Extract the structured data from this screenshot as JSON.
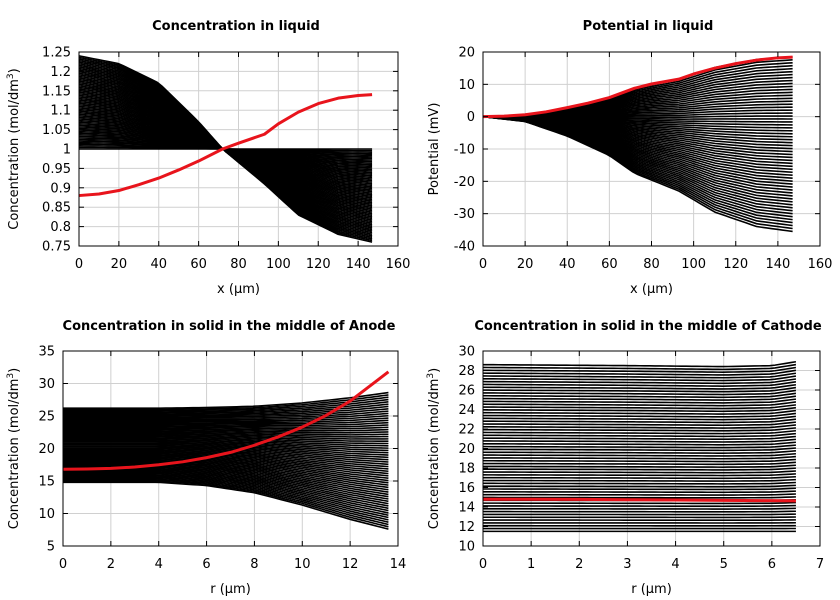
{
  "chart_data": [
    {
      "type": "line",
      "title": "Concentration in liquid",
      "xlabel": "x (μm)",
      "ylabel_main": "Concentration (mol/dm",
      "ylabel_sup": "3",
      "ylabel_tail": ")",
      "xlim": [
        0,
        160
      ],
      "ylim": [
        0.75,
        1.25
      ],
      "xticks": [
        0,
        20,
        40,
        60,
        80,
        100,
        120,
        140,
        160
      ],
      "yticks": [
        0.75,
        0.8,
        0.85,
        0.9,
        0.95,
        1,
        1.05,
        1.1,
        1.15,
        1.2,
        1.25
      ],
      "ytick_labels": [
        "0.75",
        "0.8",
        "0.85",
        "0.9",
        "0.95",
        "1",
        "1.05",
        "1.1",
        "1.15",
        "1.2",
        "1.25"
      ],
      "grid": true,
      "highlight_color": "#e8141c",
      "family_color": "#000000",
      "family": {
        "count": 60,
        "x_end": 147,
        "start": [
          [
            0,
            1.0
          ],
          [
            50,
            1.0
          ],
          [
            72,
            1.0
          ],
          [
            93,
            1.0
          ],
          [
            147,
            1.0
          ]
        ],
        "end": [
          [
            0,
            1.24
          ],
          [
            20,
            1.22
          ],
          [
            40,
            1.17
          ],
          [
            60,
            1.07
          ],
          [
            72,
            1.0
          ],
          [
            93,
            0.91
          ],
          [
            110,
            0.83
          ],
          [
            130,
            0.78
          ],
          [
            147,
            0.76
          ]
        ]
      },
      "series": [
        {
          "x": [
            0,
            10,
            20,
            30,
            40,
            50,
            60,
            72,
            80,
            93,
            100,
            110,
            120,
            130,
            140,
            147
          ],
          "values": [
            0.88,
            0.884,
            0.893,
            0.908,
            0.925,
            0.946,
            0.969,
            1.0,
            1.015,
            1.038,
            1.065,
            1.095,
            1.117,
            1.131,
            1.138,
            1.14
          ]
        }
      ]
    },
    {
      "type": "line",
      "title": "Potential in liquid",
      "xlabel": "x (μm)",
      "ylabel_main": "Potential (mV)",
      "ylabel_sup": "",
      "ylabel_tail": "",
      "xlim": [
        0,
        160
      ],
      "ylim": [
        -40,
        20
      ],
      "xticks": [
        0,
        20,
        40,
        60,
        80,
        100,
        120,
        140,
        160
      ],
      "yticks": [
        -40,
        -30,
        -20,
        -10,
        0,
        10,
        20
      ],
      "ytick_labels": [
        "-40",
        "-30",
        "-20",
        "-10",
        "0",
        "10",
        "20"
      ],
      "grid": true,
      "highlight_color": "#e8141c",
      "family_color": "#000000",
      "family": {
        "count": 60,
        "x_end": 147,
        "start": [
          [
            0,
            0
          ],
          [
            20,
            0.5
          ],
          [
            40,
            2.5
          ],
          [
            60,
            5.8
          ],
          [
            72,
            8.8
          ],
          [
            93,
            11.5
          ],
          [
            110,
            15.2
          ],
          [
            130,
            17.7
          ],
          [
            147,
            18.5
          ]
        ],
        "end": [
          [
            0,
            0
          ],
          [
            20,
            -1.5
          ],
          [
            40,
            -6
          ],
          [
            60,
            -12
          ],
          [
            72,
            -17.5
          ],
          [
            93,
            -23
          ],
          [
            110,
            -29.5
          ],
          [
            130,
            -34
          ],
          [
            147,
            -35.5
          ]
        ]
      },
      "series": [
        {
          "x": [
            0,
            10,
            20,
            30,
            40,
            50,
            60,
            72,
            80,
            93,
            100,
            110,
            120,
            130,
            140,
            147
          ],
          "values": [
            0,
            0.15,
            0.6,
            1.5,
            2.8,
            4.2,
            5.9,
            8.8,
            10.1,
            11.6,
            13.2,
            15.0,
            16.4,
            17.5,
            18.2,
            18.4
          ]
        }
      ]
    },
    {
      "type": "line",
      "title": "Concentration in solid in the middle of Anode",
      "xlabel": "r (μm)",
      "ylabel_main": "Concentration (mol/dm",
      "ylabel_sup": "3",
      "ylabel_tail": ")",
      "xlim": [
        0,
        14
      ],
      "ylim": [
        5,
        35
      ],
      "xticks": [
        0,
        2,
        4,
        6,
        8,
        10,
        12,
        14
      ],
      "yticks": [
        5,
        10,
        15,
        20,
        25,
        30,
        35
      ],
      "ytick_labels": [
        "5",
        "10",
        "15",
        "20",
        "25",
        "30",
        "35"
      ],
      "grid": true,
      "highlight_color": "#e8141c",
      "family_color": "#000000",
      "family": {
        "count": 60,
        "x_end": 13.6,
        "start": [
          [
            0,
            26.2
          ],
          [
            4,
            26.2
          ],
          [
            6,
            26.3
          ],
          [
            8,
            26.5
          ],
          [
            10,
            27.0
          ],
          [
            12,
            27.8
          ],
          [
            13.6,
            28.6
          ]
        ],
        "end": [
          [
            0,
            14.8
          ],
          [
            4,
            14.8
          ],
          [
            6,
            14.3
          ],
          [
            8,
            13.2
          ],
          [
            10,
            11.3
          ],
          [
            12,
            9.1
          ],
          [
            13.6,
            7.6
          ]
        ]
      },
      "series": [
        {
          "x": [
            0,
            1,
            2,
            3,
            4,
            5,
            6,
            7,
            8,
            9,
            10,
            11,
            12,
            13,
            13.6
          ],
          "values": [
            16.8,
            16.85,
            16.95,
            17.15,
            17.5,
            17.95,
            18.6,
            19.4,
            20.5,
            21.8,
            23.3,
            25.1,
            27.3,
            30.1,
            31.8
          ]
        }
      ]
    },
    {
      "type": "line",
      "title": "Concentration in solid in the middle of Cathode",
      "xlabel": "r (μm)",
      "ylabel_main": "Concentration (mol/dm",
      "ylabel_sup": "3",
      "ylabel_tail": ")",
      "xlim": [
        0,
        7
      ],
      "ylim": [
        10,
        30
      ],
      "xticks": [
        0,
        1,
        2,
        3,
        4,
        5,
        6,
        7
      ],
      "yticks": [
        10,
        12,
        14,
        16,
        18,
        20,
        22,
        24,
        26,
        28,
        30
      ],
      "ytick_labels": [
        "10",
        "12",
        "14",
        "16",
        "18",
        "20",
        "22",
        "24",
        "26",
        "28",
        "30"
      ],
      "grid": true,
      "highlight_color": "#e8141c",
      "family_color": "#000000",
      "family": {
        "count": 60,
        "x_end": 6.5,
        "start": [
          [
            0,
            28.6
          ],
          [
            3,
            28.5
          ],
          [
            5,
            28.4
          ],
          [
            6,
            28.5
          ],
          [
            6.5,
            28.9
          ]
        ],
        "end": [
          [
            0,
            11.5
          ],
          [
            3,
            11.5
          ],
          [
            5,
            11.5
          ],
          [
            6,
            11.5
          ],
          [
            6.5,
            11.5
          ]
        ]
      },
      "series": [
        {
          "x": [
            0,
            1,
            2,
            3,
            4,
            5,
            6,
            6.5
          ],
          "values": [
            14.8,
            14.8,
            14.78,
            14.75,
            14.72,
            14.68,
            14.65,
            14.63
          ]
        }
      ]
    }
  ]
}
